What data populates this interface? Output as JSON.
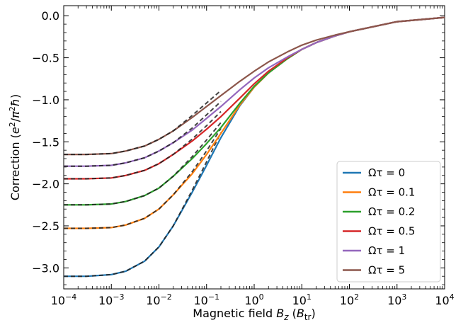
{
  "chart_data": {
    "type": "line",
    "xscale": "log",
    "xlim": [
      0.0001,
      10000
    ],
    "ylim": [
      -3.25,
      0.12
    ],
    "xlabel": "Magnetic field B_z (B_tr)",
    "ylabel": "Correction (e²/π²ħ)",
    "xticks": [
      {
        "value": 0.0001,
        "label": "10^-4"
      },
      {
        "value": 0.001,
        "label": "10^-3"
      },
      {
        "value": 0.01,
        "label": "10^-2"
      },
      {
        "value": 0.1,
        "label": "10^-1"
      },
      {
        "value": 1,
        "label": "10^0"
      },
      {
        "value": 10,
        "label": "10^1"
      },
      {
        "value": 100,
        "label": "10^2"
      },
      {
        "value": 1000,
        "label": "10^3"
      },
      {
        "value": 10000,
        "label": "10^4"
      }
    ],
    "yticks": [
      {
        "value": 0.0,
        "label": "0.0"
      },
      {
        "value": -0.5,
        "label": "−0.5"
      },
      {
        "value": -1.0,
        "label": "−1.0"
      },
      {
        "value": -1.5,
        "label": "−1.5"
      },
      {
        "value": -2.0,
        "label": "−2.0"
      },
      {
        "value": -2.5,
        "label": "−2.5"
      },
      {
        "value": -3.0,
        "label": "−3.0"
      }
    ],
    "legend_position": "lower-right",
    "series": [
      {
        "name": "Ωτ = 0",
        "color": "#1f77b4",
        "base": -3.1,
        "x": [
          0.0001,
          0.0003,
          0.001,
          0.002,
          0.005,
          0.01,
          0.02,
          0.05,
          0.1,
          0.2,
          0.5,
          1,
          2,
          5,
          10,
          20,
          50,
          100,
          1000,
          10000
        ],
        "y": [
          -3.1,
          -3.1,
          -3.08,
          -3.04,
          -2.92,
          -2.75,
          -2.5,
          -2.1,
          -1.78,
          -1.45,
          -1.07,
          -0.85,
          -0.68,
          -0.51,
          -0.4,
          -0.32,
          -0.24,
          -0.19,
          -0.07,
          -0.02
        ]
      },
      {
        "name": "Ωτ = 0.1",
        "color": "#ff7f0e",
        "base": -2.53,
        "x": [
          0.0001,
          0.0003,
          0.001,
          0.002,
          0.005,
          0.01,
          0.02,
          0.05,
          0.1,
          0.2,
          0.5,
          1,
          2,
          5,
          10,
          20,
          50,
          100,
          1000,
          10000
        ],
        "y": [
          -2.53,
          -2.53,
          -2.52,
          -2.49,
          -2.41,
          -2.3,
          -2.13,
          -1.88,
          -1.65,
          -1.4,
          -1.06,
          -0.85,
          -0.68,
          -0.51,
          -0.4,
          -0.32,
          -0.24,
          -0.19,
          -0.07,
          -0.02
        ]
      },
      {
        "name": "Ωτ = 0.2",
        "color": "#2ca02c",
        "base": -2.25,
        "x": [
          0.0001,
          0.0003,
          0.001,
          0.002,
          0.005,
          0.01,
          0.02,
          0.05,
          0.1,
          0.2,
          0.5,
          1,
          2,
          5,
          10,
          20,
          50,
          100,
          1000,
          10000
        ],
        "y": [
          -2.25,
          -2.25,
          -2.24,
          -2.21,
          -2.14,
          -2.05,
          -1.91,
          -1.7,
          -1.52,
          -1.33,
          -1.04,
          -0.84,
          -0.68,
          -0.51,
          -0.4,
          -0.32,
          -0.24,
          -0.19,
          -0.07,
          -0.02
        ]
      },
      {
        "name": "Ωτ = 0.5",
        "color": "#d62728",
        "base": -1.94,
        "x": [
          0.0001,
          0.0003,
          0.001,
          0.002,
          0.005,
          0.01,
          0.02,
          0.05,
          0.1,
          0.2,
          0.5,
          1,
          2,
          5,
          10,
          20,
          50,
          100,
          1000,
          10000
        ],
        "y": [
          -1.94,
          -1.94,
          -1.93,
          -1.9,
          -1.84,
          -1.76,
          -1.65,
          -1.49,
          -1.35,
          -1.2,
          -0.98,
          -0.81,
          -0.66,
          -0.5,
          -0.4,
          -0.32,
          -0.24,
          -0.19,
          -0.07,
          -0.02
        ]
      },
      {
        "name": "Ωτ = 1",
        "color": "#9467bd",
        "base": -1.79,
        "x": [
          0.0001,
          0.0003,
          0.001,
          0.002,
          0.005,
          0.01,
          0.02,
          0.05,
          0.1,
          0.2,
          0.5,
          1,
          2,
          5,
          10,
          20,
          50,
          100,
          1000,
          10000
        ],
        "y": [
          -1.79,
          -1.79,
          -1.78,
          -1.75,
          -1.69,
          -1.61,
          -1.51,
          -1.36,
          -1.22,
          -1.08,
          -0.88,
          -0.74,
          -0.62,
          -0.49,
          -0.4,
          -0.32,
          -0.24,
          -0.19,
          -0.07,
          -0.02
        ]
      },
      {
        "name": "Ωτ = 5",
        "color": "#8c564b",
        "base": -1.65,
        "x": [
          0.0001,
          0.0003,
          0.001,
          0.002,
          0.005,
          0.01,
          0.02,
          0.05,
          0.1,
          0.2,
          0.5,
          1,
          2,
          5,
          10,
          20,
          50,
          100,
          1000,
          10000
        ],
        "y": [
          -1.65,
          -1.65,
          -1.64,
          -1.61,
          -1.55,
          -1.47,
          -1.37,
          -1.21,
          -1.08,
          -0.95,
          -0.78,
          -0.66,
          -0.55,
          -0.43,
          -0.35,
          -0.29,
          -0.23,
          -0.19,
          -0.07,
          -0.02
        ]
      }
    ],
    "dashed_asymptote": {
      "color": "#222222",
      "xmax": 0.2
    }
  }
}
